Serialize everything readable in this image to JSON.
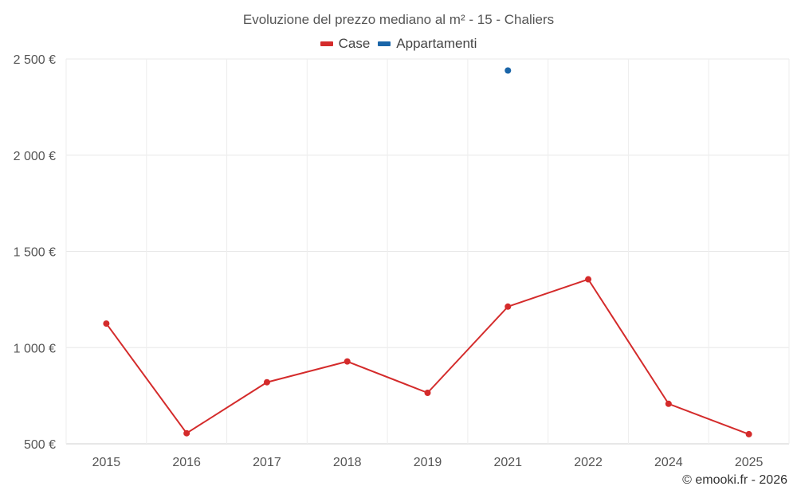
{
  "chart_data": {
    "type": "line",
    "title": "Evoluzione del prezzo mediano al m² - 15 - Chaliers",
    "categories": [
      "2015",
      "2016",
      "2017",
      "2018",
      "2019",
      "2021",
      "2022",
      "2024",
      "2025"
    ],
    "series": [
      {
        "name": "Case",
        "color": "#d42b2b",
        "values": [
          1125,
          555,
          820,
          928,
          765,
          1213,
          1355,
          708,
          550
        ]
      },
      {
        "name": "Appartamenti",
        "color": "#1a65a8",
        "values": [
          null,
          null,
          null,
          null,
          null,
          2440,
          null,
          null,
          null
        ]
      }
    ],
    "y_ticks": [
      500,
      1000,
      1500,
      2000,
      2500
    ],
    "y_tick_labels": [
      "500 €",
      "1 000 €",
      "1 500 €",
      "2 000 €",
      "2 500 €"
    ],
    "ylim": [
      500,
      2500
    ],
    "xlabel": "",
    "ylabel": "",
    "grid": true,
    "legend_position": "top-center"
  },
  "credits": "© emooki.fr - 2026"
}
